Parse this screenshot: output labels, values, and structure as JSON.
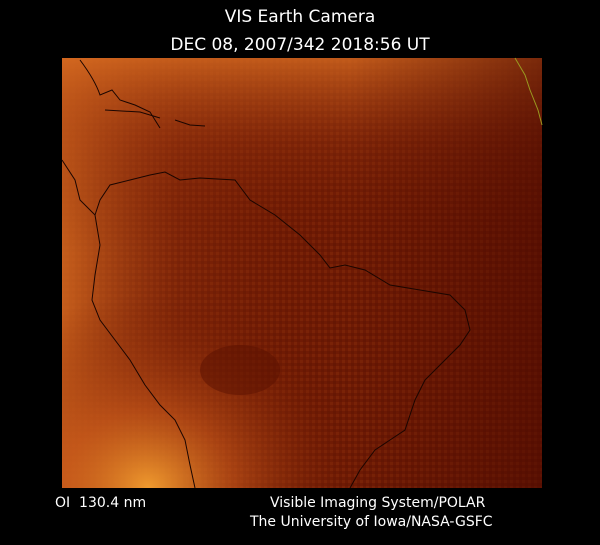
{
  "header": {
    "title": "VIS Earth Camera",
    "timestamp": "DEC 08, 2007/342 2018:56 UT"
  },
  "footer": {
    "filter": "OI  130.4 nm",
    "instrument": "Visible Imaging System/POLAR",
    "credit": "The University of Iowa/NASA-GSFC"
  }
}
